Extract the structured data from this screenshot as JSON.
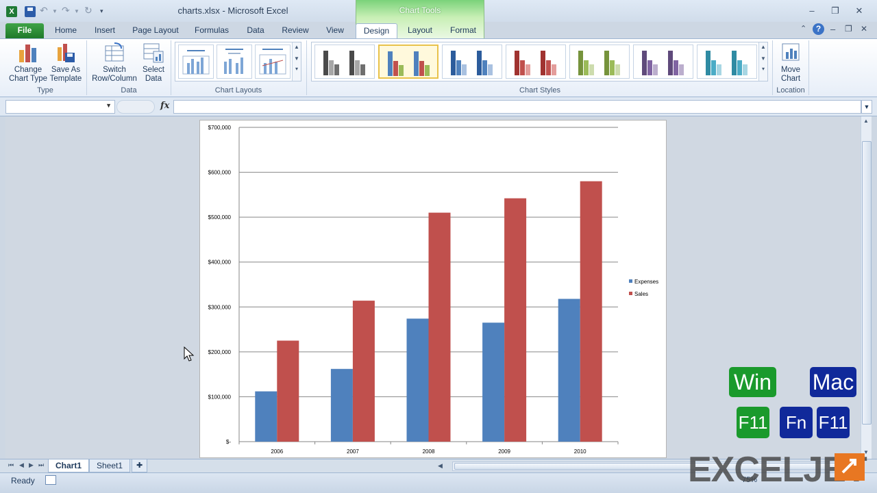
{
  "window": {
    "title": "charts.xlsx  -  Microsoft Excel",
    "context_tab_group": "Chart Tools",
    "logo_letter": "X"
  },
  "tabs": [
    "File",
    "Home",
    "Insert",
    "Page Layout",
    "Formulas",
    "Data",
    "Review",
    "View",
    "Design",
    "Layout",
    "Format"
  ],
  "active_tab": "Design",
  "ribbon": {
    "change_chart_type": "Change Chart Type",
    "save_as_template": "Save As Template",
    "switch_row_column": "Switch Row/Column",
    "select_data": "Select Data",
    "move_chart": "Move Chart",
    "groups": {
      "type": "Type",
      "data": "Data",
      "chart_layouts": "Chart Layouts",
      "chart_styles": "Chart Styles",
      "location": "Location"
    },
    "style_palettes": [
      [
        "#4a4a4a",
        "#a6a6a6",
        "#6f6f6f"
      ],
      [
        "#4f81bd",
        "#c0504d",
        "#9bbb59"
      ],
      [
        "#2c5c9c",
        "#4f81bd",
        "#a9c1e0"
      ],
      [
        "#a03330",
        "#c0504d",
        "#e39d9b"
      ],
      [
        "#76933c",
        "#9bbb59",
        "#cddcae"
      ],
      [
        "#5f4a7b",
        "#8064a2",
        "#bbaecd"
      ],
      [
        "#2f8ba3",
        "#4bacc6",
        "#a7d6e3"
      ]
    ],
    "selected_style_index": 1
  },
  "formula_bar": {
    "fx": "fx",
    "name_box": "",
    "formula": ""
  },
  "chart_data": {
    "type": "bar",
    "categories": [
      "2006",
      "2007",
      "2008",
      "2009",
      "2010"
    ],
    "series": [
      {
        "name": "Expenses",
        "color": "#4f81bd",
        "values": [
          112000,
          162000,
          274000,
          265000,
          318000
        ]
      },
      {
        "name": "Sales",
        "color": "#c0504d",
        "values": [
          225000,
          314000,
          510000,
          542000,
          580000
        ]
      }
    ],
    "ylim": [
      0,
      700000
    ],
    "yticks": [
      "$-",
      "$100,000",
      "$200,000",
      "$300,000",
      "$400,000",
      "$500,000",
      "$600,000",
      "$700,000"
    ],
    "grid": true,
    "legend": "right"
  },
  "sheets": [
    "Chart1",
    "Sheet1"
  ],
  "active_sheet": "Chart1",
  "status": {
    "ready": "Ready",
    "zoom": "75%"
  },
  "shortcuts": {
    "win_label": "Win",
    "mac_label": "Mac",
    "win_keys": [
      "F11"
    ],
    "mac_keys": [
      "Fn",
      "F11"
    ]
  },
  "brand": {
    "name": "EXCELJET"
  }
}
